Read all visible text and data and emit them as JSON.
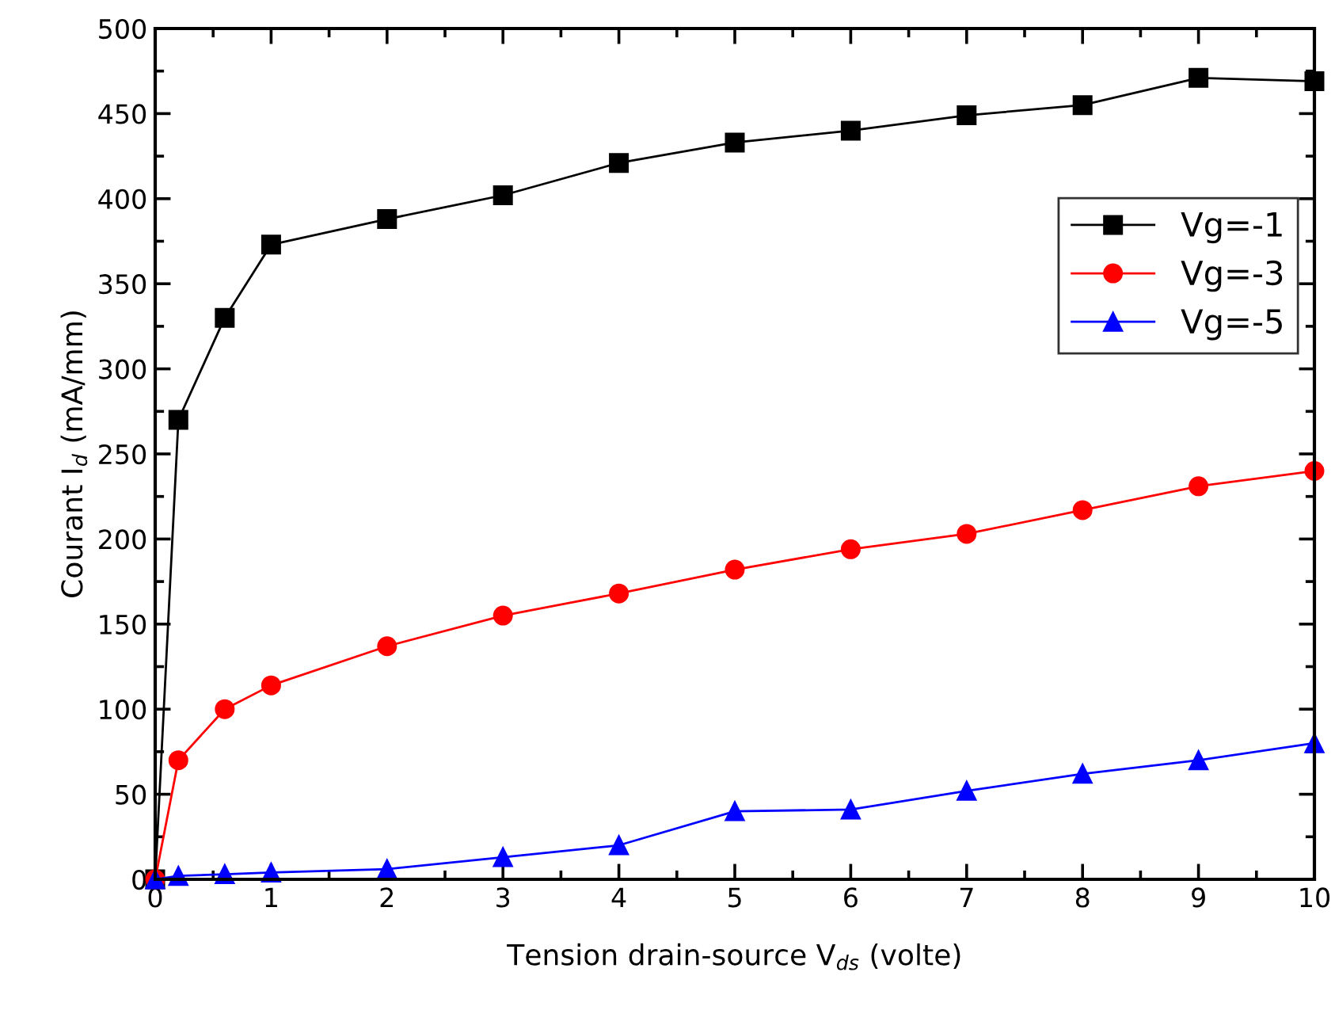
{
  "chart_data": {
    "type": "line",
    "xlabel": "Tension drain-source V$_{ds}$ (volte)",
    "ylabel": "Courant I$_{d}$ (mA/mm)",
    "x": [
      0,
      0.2,
      0.6,
      1,
      2,
      3,
      4,
      5,
      6,
      7,
      8,
      9,
      10
    ],
    "series": [
      {
        "name": "Vg=-1",
        "color": "#000000",
        "marker": "square",
        "values": [
          0,
          270,
          330,
          373,
          388,
          402,
          421,
          433,
          440,
          449,
          455,
          471,
          469
        ]
      },
      {
        "name": "Vg=-3",
        "color": "#ff0000",
        "marker": "circle",
        "values": [
          0,
          70,
          100,
          114,
          137,
          155,
          168,
          182,
          194,
          203,
          217,
          231,
          240
        ]
      },
      {
        "name": "Vg=-5",
        "color": "#0000ff",
        "marker": "triangle",
        "values": [
          0,
          2,
          3,
          4,
          6,
          13,
          20,
          40,
          41,
          52,
          62,
          70,
          80
        ]
      }
    ],
    "xlim": [
      0,
      10
    ],
    "xticks": [
      0,
      1,
      2,
      3,
      4,
      5,
      6,
      7,
      8,
      9,
      10
    ],
    "ylim": [
      0,
      500
    ],
    "yticks": [
      0,
      50,
      100,
      150,
      200,
      250,
      300,
      350,
      400,
      450,
      500
    ],
    "grid": false,
    "legend": "top right",
    "line_style": "solid"
  }
}
